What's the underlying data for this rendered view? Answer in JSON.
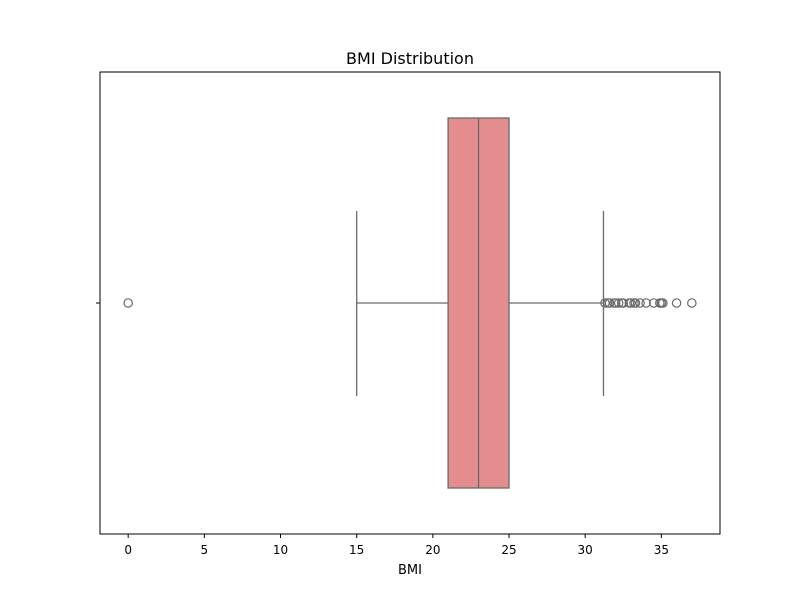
{
  "chart_data": {
    "type": "box",
    "orientation": "horizontal",
    "title": "BMI Distribution",
    "xlabel": "BMI",
    "ylabel": "",
    "xlim": [
      -1.85,
      38.85
    ],
    "xticks": [
      0,
      5,
      10,
      15,
      20,
      25,
      30,
      35
    ],
    "xtick_labels": [
      "0",
      "5",
      "10",
      "15",
      "20",
      "25",
      "30",
      "35"
    ],
    "grid": false,
    "box": {
      "whisker_low": 15.0,
      "q1": 21.0,
      "median": 23.0,
      "q3": 25.0,
      "whisker_high": 31.2,
      "outliers": [
        0,
        31.3,
        31.5,
        31.6,
        31.9,
        32.0,
        32.2,
        32.4,
        32.5,
        32.9,
        33.0,
        33.2,
        33.3,
        33.6,
        34.0,
        34.5,
        34.9,
        35.0,
        35.1,
        36.0,
        37.0
      ]
    },
    "colors": {
      "box_fill": "#e38d8f",
      "line": "#6b6b6b",
      "frame": "#000000"
    }
  }
}
